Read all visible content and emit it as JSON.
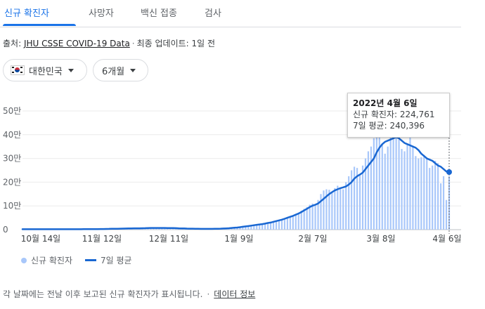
{
  "tabs": [
    {
      "label": "신규 확진자",
      "active": true
    },
    {
      "label": "사망자",
      "active": false
    },
    {
      "label": "백신 접종",
      "active": false
    },
    {
      "label": "검사",
      "active": false
    }
  ],
  "source": {
    "prefix": "출처:",
    "link": "JHU CSSE COVID-19 Data",
    "updated": "최종 업데이트: 1일 전"
  },
  "filters": {
    "region": "대한민국",
    "period": "6개월"
  },
  "tooltip": {
    "date": "2022년 4월 6일",
    "new_cases_label": "신규 확진자",
    "new_cases": "224,761",
    "avg_label": "7일 평균",
    "avg": "240,396"
  },
  "legend": {
    "bars": "신규 확진자",
    "line": "7일 평균"
  },
  "footer": {
    "note": "각 날짜에는 전날 이후 보고된 신규 확진자가 표시됩니다.",
    "link": "데이터 정보"
  },
  "colors": {
    "accent": "#1a73e8",
    "bar": "#a8c7fa",
    "line": "#1967d2"
  },
  "chart_data": {
    "type": "bar",
    "yticks": [
      "50만",
      "40만",
      "30만",
      "20만",
      "10만",
      "0"
    ],
    "ylim": [
      0,
      500000
    ],
    "xticks": [
      "10월 14일",
      "11월 12일",
      "12월 11일",
      "1월 9일",
      "2월 7일",
      "3월 8일",
      "4월 6일"
    ],
    "series": [
      {
        "name": "신규 확진자",
        "type": "bar",
        "values": [
          1700,
          1900,
          1800,
          1600,
          1500,
          1900,
          2100,
          1800,
          1600,
          1700,
          1500,
          1600,
          1900,
          2000,
          1800,
          1600,
          1700,
          1500,
          1600,
          1900,
          2000,
          2100,
          2500,
          2600,
          2400,
          2100,
          2300,
          2500,
          2800,
          3100,
          3500,
          3800,
          4000,
          3600,
          3900,
          4500,
          4900,
          5200,
          5800,
          6000,
          5500,
          5300,
          5800,
          6500,
          7000,
          7500,
          7800,
          7200,
          6800,
          7000,
          7200,
          7000,
          6800,
          6500,
          6000,
          5500,
          5200,
          4800,
          4500,
          4200,
          4000,
          3800,
          3600,
          3400,
          3300,
          3200,
          3100,
          3300,
          3600,
          4000,
          4200,
          4500,
          5200,
          6000,
          7000,
          8500,
          9500,
          10500,
          12000,
          13500,
          15000,
          16500,
          18500,
          20000,
          22000,
          23000,
          25000,
          27000,
          30000,
          32000,
          35000,
          38000,
          41000,
          44000,
          48000,
          52000,
          56000,
          60000,
          65000,
          70000,
          80000,
          88000,
          95000,
          105000,
          110000,
          108000,
          125000,
          150000,
          165000,
          170000,
          168000,
          160000,
          175000,
          185000,
          175000,
          170000,
          200000,
          225000,
          250000,
          265000,
          260000,
          230000,
          270000,
          300000,
          330000,
          350000,
          385000,
          400000,
          395000,
          360000,
          320000,
          350000,
          395000,
          405000,
          420000,
          380000,
          340000,
          330000,
          360000,
          420000,
          350000,
          310000,
          300000,
          305000,
          315000,
          300000,
          260000,
          270000,
          290000,
          280000,
          195000,
          225000,
          125000,
          224761
        ]
      },
      {
        "name": "7일 평균",
        "type": "line",
        "values": [
          1700,
          1750,
          1800,
          1700,
          1650,
          1700,
          1800,
          1800,
          1750,
          1700,
          1700,
          1650,
          1700,
          1800,
          1800,
          1750,
          1700,
          1650,
          1700,
          1750,
          1800,
          1900,
          2100,
          2300,
          2400,
          2400,
          2400,
          2500,
          2600,
          2800,
          3100,
          3400,
          3700,
          3800,
          3900,
          4100,
          4400,
          4700,
          5000,
          5300,
          5500,
          5600,
          5700,
          6000,
          6300,
          6700,
          7000,
          7100,
          7100,
          7100,
          7100,
          7000,
          6900,
          6800,
          6500,
          6100,
          5700,
          5300,
          4900,
          4500,
          4200,
          4000,
          3800,
          3600,
          3400,
          3300,
          3200,
          3250,
          3350,
          3550,
          3800,
          4100,
          4600,
          5200,
          6000,
          7000,
          8000,
          9000,
          10500,
          12000,
          13500,
          15000,
          17000,
          18500,
          20500,
          22000,
          23500,
          25500,
          28000,
          30000,
          33000,
          36000,
          39000,
          42000,
          46000,
          50000,
          54000,
          58000,
          63000,
          68000,
          74000,
          81000,
          88000,
          95000,
          101000,
          105000,
          110000,
          120000,
          130000,
          140000,
          150000,
          158000,
          165000,
          170000,
          175000,
          178000,
          182000,
          190000,
          200000,
          215000,
          225000,
          232000,
          240000,
          255000,
          270000,
          285000,
          300000,
          325000,
          345000,
          360000,
          370000,
          375000,
          380000,
          385000,
          390000,
          385000,
          375000,
          365000,
          360000,
          355000,
          350000,
          345000,
          335000,
          320000,
          310000,
          300000,
          295000,
          290000,
          280000,
          270000,
          265000,
          255000,
          245000,
          240396
        ]
      }
    ]
  }
}
